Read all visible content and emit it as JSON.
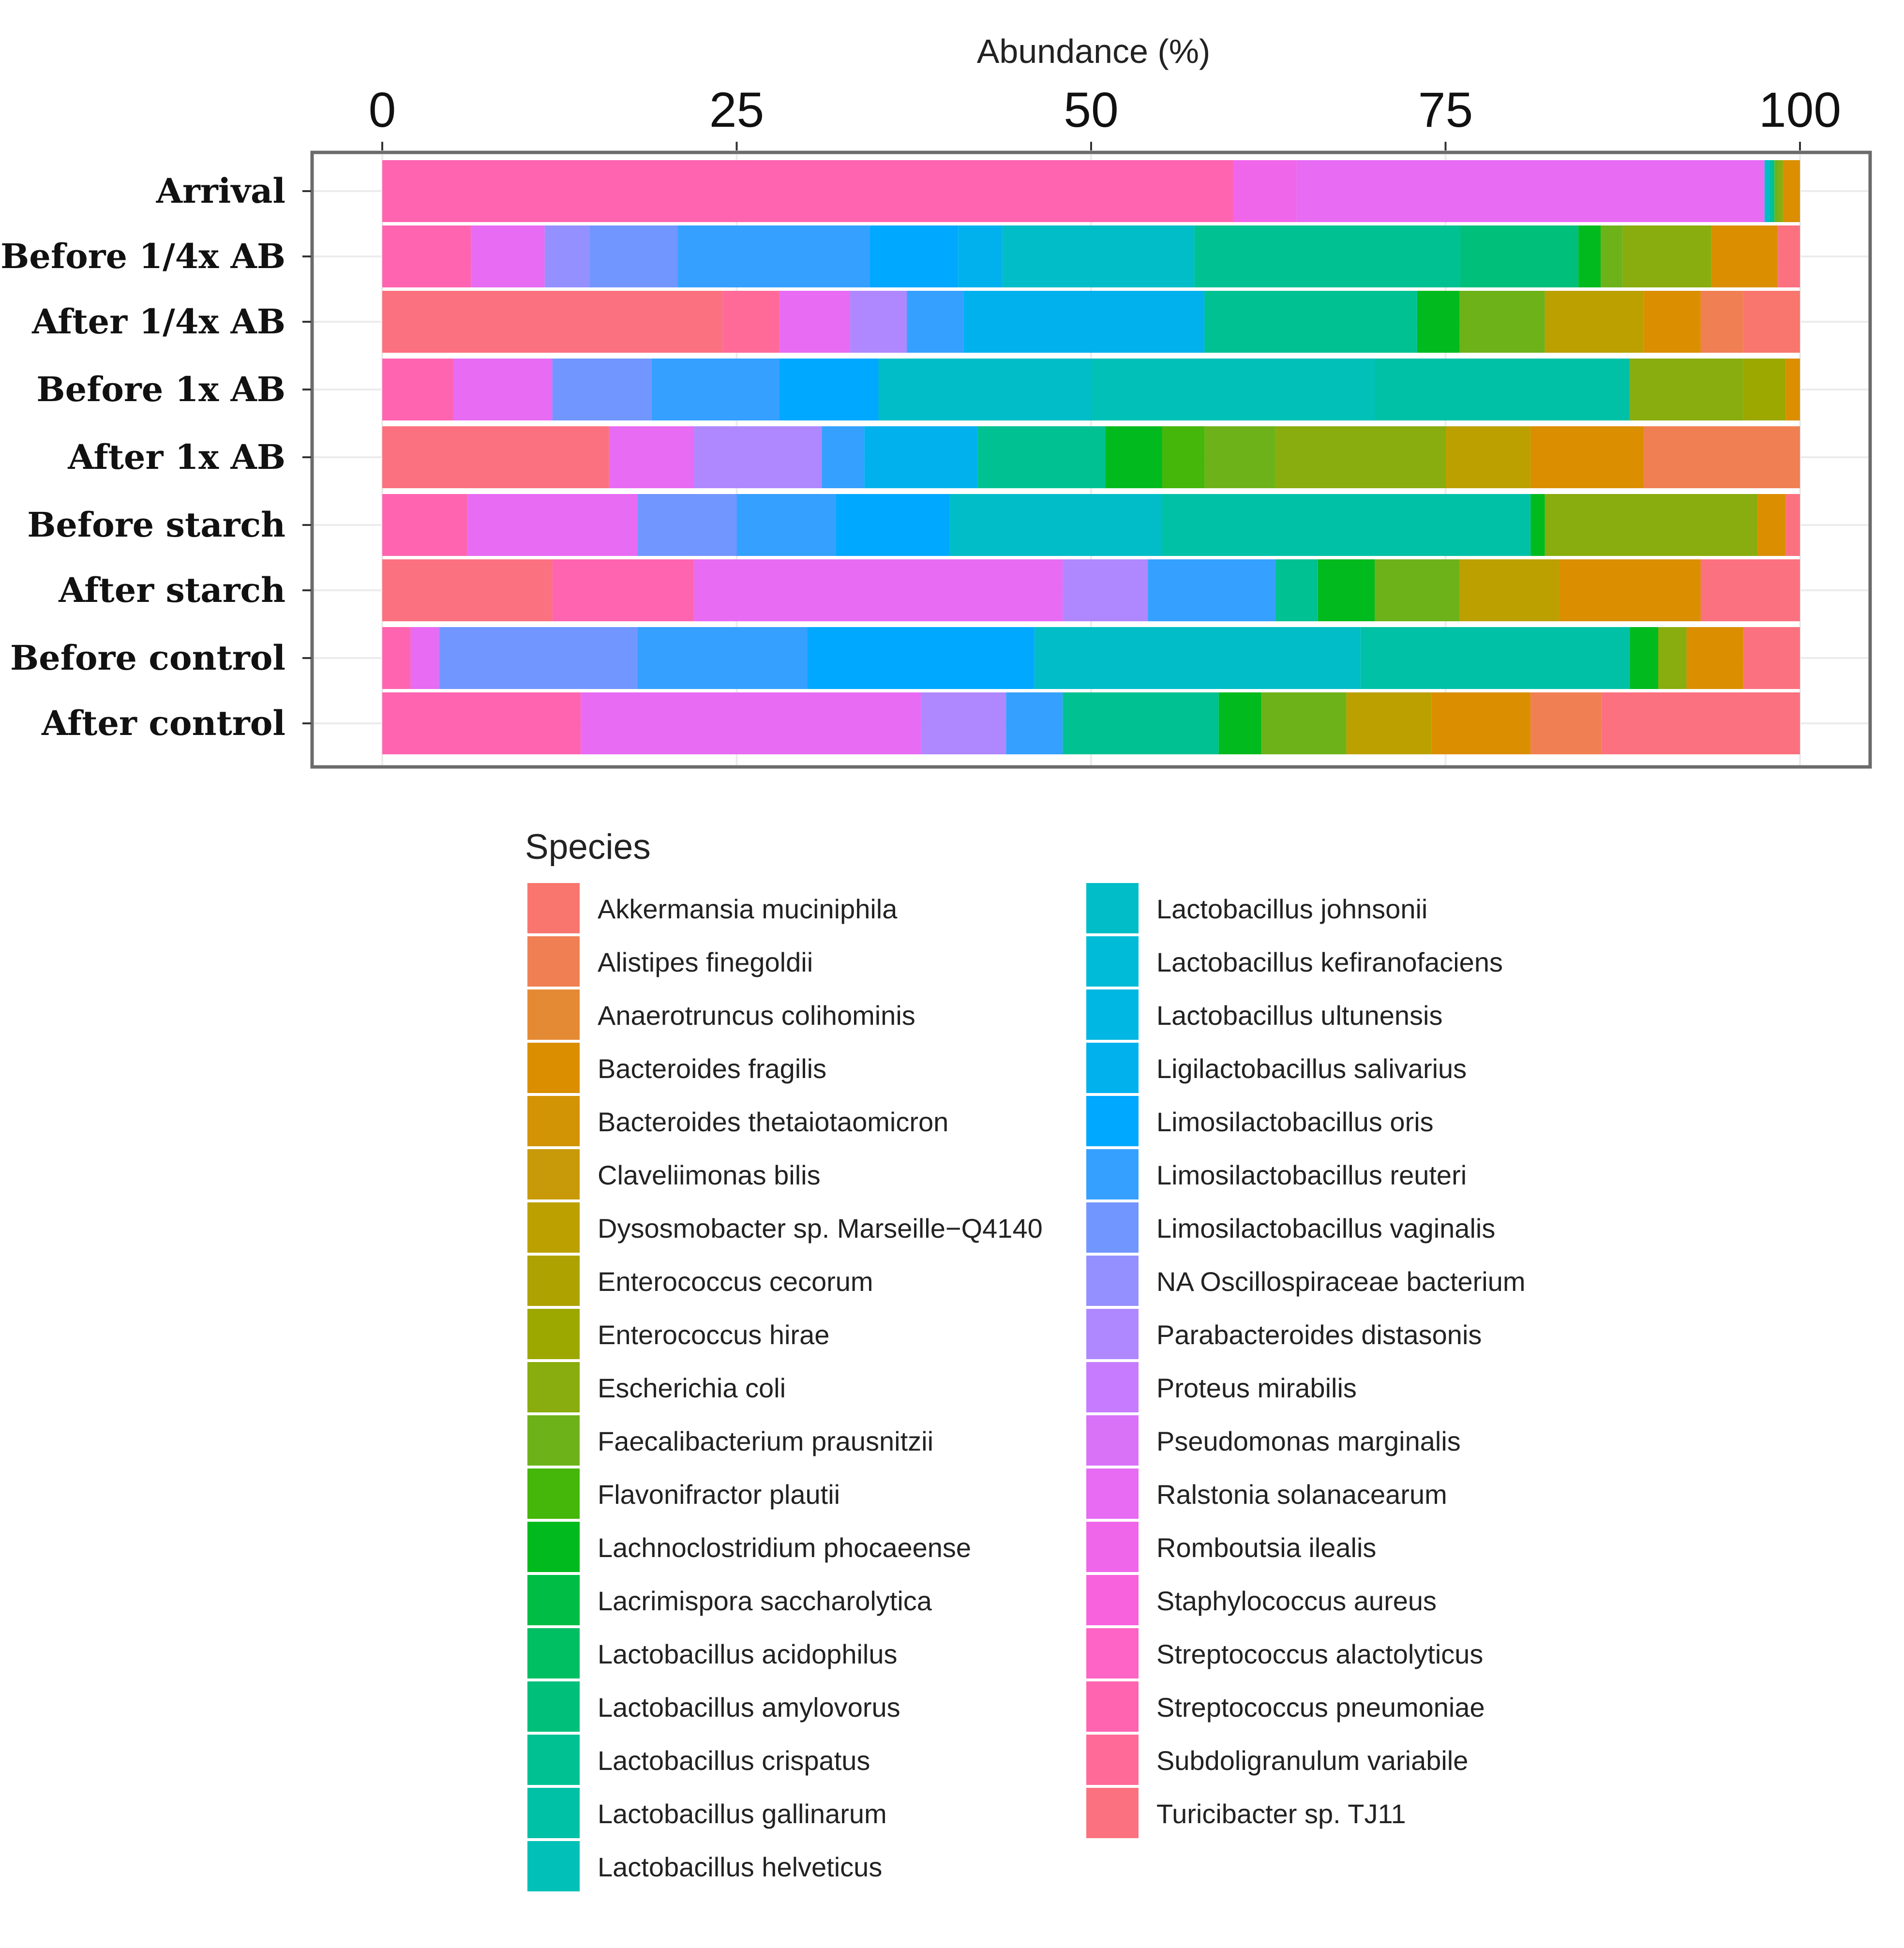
{
  "chart_data": {
    "type": "bar",
    "orientation": "horizontal",
    "stacked": true,
    "title": "",
    "xlabel": "Abundance (%)",
    "ylabel": "",
    "xlim": [
      0,
      100
    ],
    "x_ticks": [
      "0",
      "25",
      "50",
      "75",
      "100"
    ],
    "axis_position": "top",
    "legend_title": "Species",
    "legend_position": "bottom",
    "species": [
      {
        "name": "Akkermansia muciniphila",
        "color": "#F8766D"
      },
      {
        "name": "Alistipes finegoldii",
        "color": "#F07F53"
      },
      {
        "name": "Anaerotruncus colihominis",
        "color": "#E58A34"
      },
      {
        "name": "Bacteroides fragilis",
        "color": "#DB8E00"
      },
      {
        "name": "Bacteroides thetaiotaomicron",
        "color": "#D29304"
      },
      {
        "name": "Claveliimonas bilis",
        "color": "#C89A0A"
      },
      {
        "name": "Dysosmobacter sp. Marseille−Q4140",
        "color": "#BBA000"
      },
      {
        "name": "Enterococcus cecorum",
        "color": "#AEA200"
      },
      {
        "name": "Enterococcus hirae",
        "color": "#9CA700"
      },
      {
        "name": "Escherichia coli",
        "color": "#89AC0E"
      },
      {
        "name": "Faecalibacterium prausnitzii",
        "color": "#6EB21A"
      },
      {
        "name": "Flavonifractor plautii",
        "color": "#45B60A"
      },
      {
        "name": "Lachnoclostridium phocaeense",
        "color": "#00BA1E"
      },
      {
        "name": "Lacrimispora saccharolytica",
        "color": "#00BD45"
      },
      {
        "name": "Lactobacillus acidophilus",
        "color": "#00BE62"
      },
      {
        "name": "Lactobacillus amylovorus",
        "color": "#00BF7B"
      },
      {
        "name": "Lactobacillus crispatus",
        "color": "#00C192"
      },
      {
        "name": "Lactobacillus gallinarum",
        "color": "#00C1A6"
      },
      {
        "name": "Lactobacillus helveticus",
        "color": "#00C0B8"
      },
      {
        "name": "Lactobacillus johnsonii",
        "color": "#00BDC8"
      },
      {
        "name": "Lactobacillus kefiranofaciens",
        "color": "#00BBD7"
      },
      {
        "name": "Lactobacillus ultunensis",
        "color": "#00B6E3"
      },
      {
        "name": "Ligilactobacillus salivarius",
        "color": "#00B1EE"
      },
      {
        "name": "Limosilactobacillus oris",
        "color": "#00A8FF"
      },
      {
        "name": "Limosilactobacillus reuteri",
        "color": "#35A0FF"
      },
      {
        "name": "Limosilactobacillus vaginalis",
        "color": "#7296FF"
      },
      {
        "name": "NA Oscillospiraceae bacterium",
        "color": "#9590FF"
      },
      {
        "name": "Parabacteroides distasonis",
        "color": "#AF88FF"
      },
      {
        "name": "Proteus mirabilis",
        "color": "#C77CFF"
      },
      {
        "name": "Pseudomonas marginalis",
        "color": "#DA72F8"
      },
      {
        "name": "Ralstonia solanacearum",
        "color": "#E76BF3"
      },
      {
        "name": "Romboutsia ilealis",
        "color": "#F066EA"
      },
      {
        "name": "Staphylococcus aureus",
        "color": "#F962DD"
      },
      {
        "name": "Streptococcus alactolyticus",
        "color": "#FE63C6"
      },
      {
        "name": "Streptococcus pneumoniae",
        "color": "#FF64B0"
      },
      {
        "name": "Subdoligranulum variabile",
        "color": "#FF6A98"
      },
      {
        "name": "Turicibacter sp. TJ11",
        "color": "#FC717F"
      }
    ],
    "categories": [
      "Arrival",
      "Before 1/4x AB",
      "After 1/4x AB",
      "Before 1x AB",
      "After 1x AB",
      "Before starch",
      "After starch",
      "Before control",
      "After control"
    ],
    "segments": [
      [
        {
          "species": "Streptococcus pneumoniae",
          "value": 60
        },
        {
          "species": "Romboutsia ilealis",
          "value": 4.5
        },
        {
          "species": "Ralstonia solanacearum",
          "value": 33
        },
        {
          "species": "Lactobacillus johnsonii",
          "value": 0.4
        },
        {
          "species": "Lactobacillus crispatus",
          "value": 0.3
        },
        {
          "species": "Faecalibacterium prausnitzii",
          "value": 0.3
        },
        {
          "species": "Escherichia coli",
          "value": 0.3
        },
        {
          "species": "Bacteroides fragilis",
          "value": 1.2
        }
      ],
      [
        {
          "species": "Streptococcus pneumoniae",
          "value": 6
        },
        {
          "species": "Ralstonia solanacearum",
          "value": 5
        },
        {
          "species": "NA Oscillospiraceae bacterium",
          "value": 3
        },
        {
          "species": "Limosilactobacillus vaginalis",
          "value": 6
        },
        {
          "species": "Limosilactobacillus reuteri",
          "value": 13
        },
        {
          "species": "Limosilactobacillus oris",
          "value": 6
        },
        {
          "species": "Ligilactobacillus salivarius",
          "value": 3
        },
        {
          "species": "Lactobacillus johnsonii",
          "value": 13
        },
        {
          "species": "Lactobacillus crispatus",
          "value": 18
        },
        {
          "species": "Lactobacillus amylovorus",
          "value": 8
        },
        {
          "species": "Lachnoclostridium phocaeense",
          "value": 1.5
        },
        {
          "species": "Faecalibacterium prausnitzii",
          "value": 1.5
        },
        {
          "species": "Escherichia coli",
          "value": 6
        },
        {
          "species": "Bacteroides fragilis",
          "value": 4.5
        },
        {
          "species": "Turicibacter sp. TJ11",
          "value": 1.5
        }
      ],
      [
        {
          "species": "Turicibacter sp. TJ11",
          "value": 24
        },
        {
          "species": "Subdoligranulum variabile",
          "value": 4
        },
        {
          "species": "Ralstonia solanacearum",
          "value": 5
        },
        {
          "species": "Parabacteroides distasonis",
          "value": 4
        },
        {
          "species": "Limosilactobacillus reuteri",
          "value": 4
        },
        {
          "species": "Ligilactobacillus salivarius",
          "value": 17
        },
        {
          "species": "Lactobacillus crispatus",
          "value": 15
        },
        {
          "species": "Lachnoclostridium phocaeense",
          "value": 3
        },
        {
          "species": "Faecalibacterium prausnitzii",
          "value": 6
        },
        {
          "species": "Dysosmobacter sp. Marseille−Q4140",
          "value": 7
        },
        {
          "species": "Bacteroides fragilis",
          "value": 4
        },
        {
          "species": "Alistipes finegoldii",
          "value": 3
        },
        {
          "species": "Akkermansia muciniphila",
          "value": 4
        }
      ],
      [
        {
          "species": "Streptococcus pneumoniae",
          "value": 5
        },
        {
          "species": "Ralstonia solanacearum",
          "value": 7
        },
        {
          "species": "Limosilactobacillus vaginalis",
          "value": 7
        },
        {
          "species": "Limosilactobacillus reuteri",
          "value": 9
        },
        {
          "species": "Limosilactobacillus oris",
          "value": 7
        },
        {
          "species": "Lactobacillus johnsonii",
          "value": 15
        },
        {
          "species": "Lactobacillus helveticus",
          "value": 20
        },
        {
          "species": "Lactobacillus gallinarum",
          "value": 18
        },
        {
          "species": "Escherichia coli",
          "value": 8
        },
        {
          "species": "Enterococcus hirae",
          "value": 3
        },
        {
          "species": "Bacteroides fragilis",
          "value": 1
        }
      ],
      [
        {
          "species": "Turicibacter sp. TJ11",
          "value": 16
        },
        {
          "species": "Ralstonia solanacearum",
          "value": 6
        },
        {
          "species": "Parabacteroides distasonis",
          "value": 9
        },
        {
          "species": "Limosilactobacillus reuteri",
          "value": 3
        },
        {
          "species": "Ligilactobacillus salivarius",
          "value": 8
        },
        {
          "species": "Lactobacillus crispatus",
          "value": 9
        },
        {
          "species": "Lachnoclostridium phocaeense",
          "value": 4
        },
        {
          "species": "Flavonifractor plautii",
          "value": 3
        },
        {
          "species": "Faecalibacterium prausnitzii",
          "value": 5
        },
        {
          "species": "Escherichia coli",
          "value": 12
        },
        {
          "species": "Dysosmobacter sp. Marseille−Q4140",
          "value": 6
        },
        {
          "species": "Bacteroides fragilis",
          "value": 8
        },
        {
          "species": "Alistipes finegoldii",
          "value": 11
        }
      ],
      [
        {
          "species": "Streptococcus pneumoniae",
          "value": 6
        },
        {
          "species": "Ralstonia solanacearum",
          "value": 12
        },
        {
          "species": "Limosilactobacillus vaginalis",
          "value": 7
        },
        {
          "species": "Limosilactobacillus reuteri",
          "value": 7
        },
        {
          "species": "Limosilactobacillus oris",
          "value": 8
        },
        {
          "species": "Lactobacillus johnsonii",
          "value": 15
        },
        {
          "species": "Lactobacillus gallinarum",
          "value": 26
        },
        {
          "species": "Lachnoclostridium phocaeense",
          "value": 1
        },
        {
          "species": "Escherichia coli",
          "value": 15
        },
        {
          "species": "Bacteroides fragilis",
          "value": 2
        },
        {
          "species": "Turicibacter sp. TJ11",
          "value": 1
        }
      ],
      [
        {
          "species": "Turicibacter sp. TJ11",
          "value": 12
        },
        {
          "species": "Streptococcus pneumoniae",
          "value": 10
        },
        {
          "species": "Ralstonia solanacearum",
          "value": 26
        },
        {
          "species": "Parabacteroides distasonis",
          "value": 6
        },
        {
          "species": "Limosilactobacillus reuteri",
          "value": 9
        },
        {
          "species": "Lactobacillus crispatus",
          "value": 3
        },
        {
          "species": "Lachnoclostridium phocaeense",
          "value": 4
        },
        {
          "species": "Faecalibacterium prausnitzii",
          "value": 6
        },
        {
          "species": "Dysosmobacter sp. Marseille−Q4140",
          "value": 7
        },
        {
          "species": "Bacteroides fragilis",
          "value": 10
        },
        {
          "species": "Turicibacter sp. TJ11",
          "value": 7
        }
      ],
      [
        {
          "species": "Streptococcus pneumoniae",
          "value": 2
        },
        {
          "species": "Ralstonia solanacearum",
          "value": 2
        },
        {
          "species": "Limosilactobacillus vaginalis",
          "value": 14
        },
        {
          "species": "Limosilactobacillus reuteri",
          "value": 12
        },
        {
          "species": "Limosilactobacillus oris",
          "value": 16
        },
        {
          "species": "Lactobacillus johnsonii",
          "value": 23
        },
        {
          "species": "Lactobacillus gallinarum",
          "value": 19
        },
        {
          "species": "Lachnoclostridium phocaeense",
          "value": 2
        },
        {
          "species": "Escherichia coli",
          "value": 2
        },
        {
          "species": "Bacteroides fragilis",
          "value": 4
        },
        {
          "species": "Turicibacter sp. TJ11",
          "value": 4
        }
      ],
      [
        {
          "species": "Streptococcus pneumoniae",
          "value": 14
        },
        {
          "species": "Ralstonia solanacearum",
          "value": 24
        },
        {
          "species": "Parabacteroides distasonis",
          "value": 6
        },
        {
          "species": "Limosilactobacillus reuteri",
          "value": 4
        },
        {
          "species": "Lactobacillus crispatus",
          "value": 11
        },
        {
          "species": "Lachnoclostridium phocaeense",
          "value": 3
        },
        {
          "species": "Faecalibacterium prausnitzii",
          "value": 6
        },
        {
          "species": "Dysosmobacter sp. Marseille−Q4140",
          "value": 6
        },
        {
          "species": "Bacteroides fragilis",
          "value": 7
        },
        {
          "species": "Alistipes finegoldii",
          "value": 5
        },
        {
          "species": "Turicibacter sp. TJ11",
          "value": 14
        }
      ]
    ]
  }
}
